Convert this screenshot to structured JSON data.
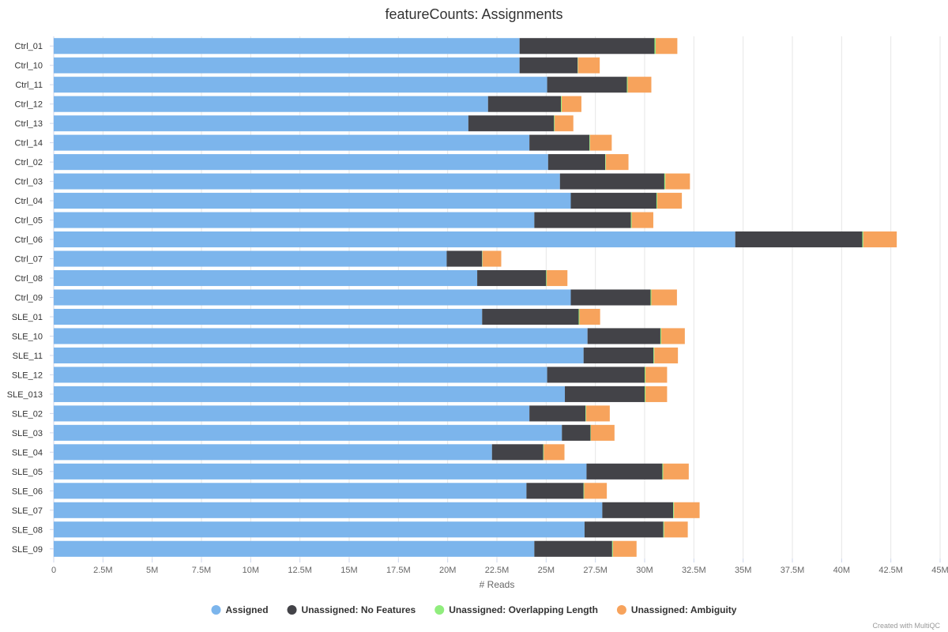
{
  "chart_data": {
    "type": "bar",
    "orientation": "horizontal",
    "stacked": true,
    "title": "featureCounts: Assignments",
    "xlabel": "# Reads",
    "ylabel": "",
    "xlim": [
      0,
      45000000
    ],
    "x_ticks": [
      0,
      2500000,
      5000000,
      7500000,
      10000000,
      12500000,
      15000000,
      17500000,
      20000000,
      22500000,
      25000000,
      27500000,
      30000000,
      32500000,
      35000000,
      37500000,
      40000000,
      42500000,
      45000000
    ],
    "x_tick_labels": [
      "0",
      "2.5M",
      "5M",
      "7.5M",
      "10M",
      "12.5M",
      "15M",
      "17.5M",
      "20M",
      "22.5M",
      "25M",
      "27.5M",
      "30M",
      "32.5M",
      "35M",
      "37.5M",
      "40M",
      "42.5M",
      "45M"
    ],
    "grid": true,
    "legend_position": "bottom",
    "categories": [
      "Ctrl_01",
      "Ctrl_10",
      "Ctrl_11",
      "Ctrl_12",
      "Ctrl_13",
      "Ctrl_14",
      "Ctrl_02",
      "Ctrl_03",
      "Ctrl_04",
      "Ctrl_05",
      "Ctrl_06",
      "Ctrl_07",
      "Ctrl_08",
      "Ctrl_09",
      "SLE_01",
      "SLE_10",
      "SLE_11",
      "SLE_12",
      "SLE_013",
      "SLE_02",
      "SLE_03",
      "SLE_04",
      "SLE_05",
      "SLE_06",
      "SLE_07",
      "SLE_08",
      "SLE_09"
    ],
    "series": [
      {
        "name": "Assigned",
        "color": "#7cb5ec",
        "values": [
          23650000,
          23650000,
          25050000,
          22050000,
          21050000,
          24150000,
          25100000,
          25700000,
          26250000,
          24400000,
          34600000,
          19950000,
          21500000,
          26250000,
          21750000,
          27100000,
          26900000,
          25050000,
          25950000,
          24150000,
          25800000,
          22250000,
          27050000,
          24000000,
          27850000,
          26950000,
          24400000
        ]
      },
      {
        "name": "Unassigned: No Features",
        "color": "#434348",
        "values": [
          6850000,
          2950000,
          4050000,
          3700000,
          4350000,
          3050000,
          2900000,
          5300000,
          4350000,
          4900000,
          6450000,
          1800000,
          3500000,
          4050000,
          4900000,
          3700000,
          3550000,
          4950000,
          4050000,
          2850000,
          1450000,
          2600000,
          3850000,
          2900000,
          3600000,
          4000000,
          3950000
        ]
      },
      {
        "name": "Unassigned: Overlapping Length",
        "color": "#90ed7d",
        "values": [
          60000,
          20000,
          40000,
          40000,
          30000,
          30000,
          30000,
          50000,
          40000,
          40000,
          50000,
          20000,
          30000,
          40000,
          40000,
          40000,
          40000,
          40000,
          40000,
          30000,
          20000,
          30000,
          40000,
          30000,
          40000,
          40000,
          40000
        ]
      },
      {
        "name": "Unassigned: Ambiguity",
        "color": "#f7a35c",
        "values": [
          1100000,
          1100000,
          1200000,
          1000000,
          950000,
          1100000,
          1150000,
          1250000,
          1250000,
          1100000,
          1700000,
          950000,
          1050000,
          1300000,
          1050000,
          1200000,
          1200000,
          1100000,
          1100000,
          1200000,
          1200000,
          1050000,
          1300000,
          1150000,
          1300000,
          1200000,
          1200000
        ]
      }
    ]
  },
  "credit": "Created with MultiQC"
}
